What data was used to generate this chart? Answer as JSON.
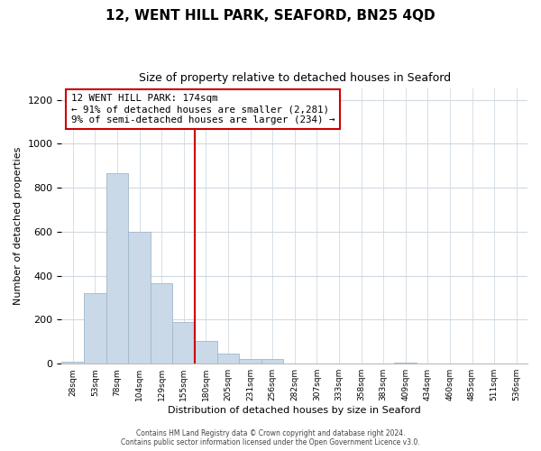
{
  "title": "12, WENT HILL PARK, SEAFORD, BN25 4QD",
  "subtitle": "Size of property relative to detached houses in Seaford",
  "xlabel": "Distribution of detached houses by size in Seaford",
  "ylabel": "Number of detached properties",
  "bar_values": [
    10,
    320,
    865,
    600,
    365,
    190,
    105,
    48,
    20,
    20,
    0,
    0,
    0,
    0,
    0,
    5,
    0,
    0,
    0,
    0,
    0
  ],
  "tick_labels": [
    "28sqm",
    "53sqm",
    "78sqm",
    "104sqm",
    "129sqm",
    "155sqm",
    "180sqm",
    "205sqm",
    "231sqm",
    "256sqm",
    "282sqm",
    "307sqm",
    "333sqm",
    "358sqm",
    "383sqm",
    "409sqm",
    "434sqm",
    "460sqm",
    "485sqm",
    "511sqm",
    "536sqm"
  ],
  "bar_color": "#c9d9e8",
  "bar_edge_color": "#a0b8cc",
  "marker_line_color": "#cc0000",
  "annotation_title": "12 WENT HILL PARK: 174sqm",
  "annotation_line1": "← 91% of detached houses are smaller (2,281)",
  "annotation_line2": "9% of semi-detached houses are larger (234) →",
  "annotation_box_color": "#ffffff",
  "annotation_box_edge_color": "#cc0000",
  "ylim": [
    0,
    1250
  ],
  "yticks": [
    0,
    200,
    400,
    600,
    800,
    1000,
    1200
  ],
  "footer_line1": "Contains HM Land Registry data © Crown copyright and database right 2024.",
  "footer_line2": "Contains public sector information licensed under the Open Government Licence v3.0.",
  "background_color": "#ffffff",
  "grid_color": "#d0dae2",
  "title_fontsize": 11,
  "subtitle_fontsize": 9
}
